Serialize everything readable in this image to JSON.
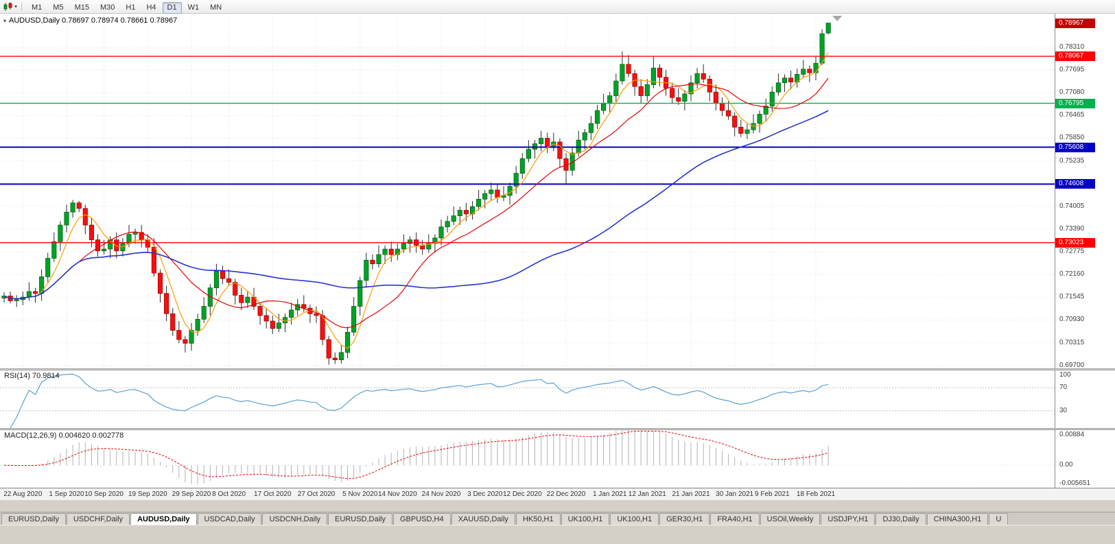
{
  "toolbar": {
    "timeframes": [
      "M1",
      "M5",
      "M15",
      "M30",
      "H1",
      "H4",
      "D1",
      "W1",
      "MN"
    ],
    "active_timeframe": "D1"
  },
  "icons": {
    "dropdown_caret": "▾",
    "chart_menu": "▾"
  },
  "chart": {
    "header_text": "AUDUSD,Daily 0.78697 0.78974 0.78661 0.78967",
    "symbol": "AUDUSD",
    "timeframe": "Daily",
    "open": "0.78697",
    "high": "0.78974",
    "low": "0.78661",
    "close": "0.78967"
  },
  "price_axis": {
    "ticks": [
      "0.78310",
      "0.77695",
      "0.77080",
      "0.76465",
      "0.75850",
      "0.75235",
      "0.74620",
      "0.74005",
      "0.73390",
      "0.72775",
      "0.72160",
      "0.71545",
      "0.70930",
      "0.70315",
      "0.69700"
    ],
    "current": {
      "label": "0.78967",
      "value": 0.78967,
      "bg": "#c40000"
    },
    "lines": [
      {
        "label": "0.78067",
        "value": 0.78067,
        "color": "#ff0000",
        "width": 1.4
      },
      {
        "label": "0.76795",
        "value": 0.76795,
        "color": "#00b14f",
        "width": 1.4
      },
      {
        "label": "0.75608",
        "value": 0.75608,
        "color": "#0000c8",
        "width": 2
      },
      {
        "label": "0.74608",
        "value": 0.74608,
        "color": "#0000c8",
        "width": 2
      },
      {
        "label": "0.73023",
        "value": 0.73023,
        "color": "#ff0000",
        "width": 1.4
      }
    ]
  },
  "chart_data": {
    "type": "candlestick",
    "title": "AUDUSD Daily",
    "y_range": [
      0.6962,
      0.7922
    ],
    "x_labels": [
      "22 Aug 2020",
      "1 Sep 2020",
      "10 Sep 2020",
      "19 Sep 2020",
      "29 Sep 2020",
      "8 Oct 2020",
      "17 Oct 2020",
      "27 Oct 2020",
      "5 Nov 2020",
      "14 Nov 2020",
      "24 Nov 2020",
      "3 Dec 2020",
      "12 Dec 2020",
      "22 Dec 2020",
      "1 Jan 2021",
      "12 Jan 2021",
      "21 Jan 2021",
      "30 Jan 2021",
      "9 Feb 2021",
      "18 Feb 2021"
    ],
    "x_label_indices": [
      3,
      10,
      16,
      23,
      30,
      36,
      43,
      50,
      57,
      63,
      70,
      77,
      83,
      90,
      97,
      103,
      110,
      117,
      123,
      130
    ],
    "candles": [
      [
        0.7152,
        0.7168,
        0.714,
        0.7158
      ],
      [
        0.7158,
        0.717,
        0.7138,
        0.7145
      ],
      [
        0.7145,
        0.716,
        0.7128,
        0.7148
      ],
      [
        0.7148,
        0.717,
        0.7133,
        0.7155
      ],
      [
        0.7155,
        0.7195,
        0.7145,
        0.717
      ],
      [
        0.717,
        0.718,
        0.714,
        0.7165
      ],
      [
        0.7165,
        0.723,
        0.7145,
        0.721
      ],
      [
        0.721,
        0.7275,
        0.7195,
        0.726
      ],
      [
        0.726,
        0.733,
        0.725,
        0.7305
      ],
      [
        0.7305,
        0.736,
        0.728,
        0.735
      ],
      [
        0.735,
        0.7405,
        0.733,
        0.7385
      ],
      [
        0.7385,
        0.7418,
        0.737,
        0.741
      ],
      [
        0.741,
        0.7415,
        0.7385,
        0.7395
      ],
      [
        0.7395,
        0.7405,
        0.7325,
        0.735
      ],
      [
        0.735,
        0.737,
        0.729,
        0.731
      ],
      [
        0.731,
        0.7325,
        0.7265,
        0.728
      ],
      [
        0.728,
        0.731,
        0.727,
        0.7285
      ],
      [
        0.7285,
        0.732,
        0.726,
        0.731
      ],
      [
        0.731,
        0.733,
        0.726,
        0.728
      ],
      [
        0.728,
        0.7315,
        0.7265,
        0.73
      ],
      [
        0.73,
        0.735,
        0.729,
        0.7325
      ],
      [
        0.7325,
        0.734,
        0.73,
        0.733
      ],
      [
        0.733,
        0.735,
        0.729,
        0.731
      ],
      [
        0.731,
        0.7325,
        0.7275,
        0.729
      ],
      [
        0.729,
        0.7315,
        0.721,
        0.722
      ],
      [
        0.722,
        0.723,
        0.714,
        0.7165
      ],
      [
        0.7165,
        0.7185,
        0.709,
        0.711
      ],
      [
        0.711,
        0.7125,
        0.705,
        0.7065
      ],
      [
        0.7065,
        0.709,
        0.703,
        0.704
      ],
      [
        0.704,
        0.705,
        0.7005,
        0.703
      ],
      [
        0.703,
        0.7085,
        0.701,
        0.7065
      ],
      [
        0.7065,
        0.711,
        0.705,
        0.7095
      ],
      [
        0.7095,
        0.7155,
        0.7085,
        0.713
      ],
      [
        0.713,
        0.719,
        0.7105,
        0.718
      ],
      [
        0.718,
        0.7245,
        0.716,
        0.7225
      ],
      [
        0.7225,
        0.724,
        0.719,
        0.7205
      ],
      [
        0.7205,
        0.723,
        0.7185,
        0.7195
      ],
      [
        0.7195,
        0.7205,
        0.7135,
        0.716
      ],
      [
        0.716,
        0.718,
        0.712,
        0.714
      ],
      [
        0.714,
        0.717,
        0.7125,
        0.7155
      ],
      [
        0.7155,
        0.718,
        0.712,
        0.713
      ],
      [
        0.713,
        0.714,
        0.708,
        0.7105
      ],
      [
        0.7105,
        0.7125,
        0.707,
        0.709
      ],
      [
        0.709,
        0.7105,
        0.7055,
        0.707
      ],
      [
        0.707,
        0.711,
        0.706,
        0.7085
      ],
      [
        0.7085,
        0.711,
        0.706,
        0.71
      ],
      [
        0.71,
        0.714,
        0.708,
        0.712
      ],
      [
        0.712,
        0.715,
        0.7105,
        0.7135
      ],
      [
        0.7135,
        0.716,
        0.7115,
        0.7125
      ],
      [
        0.7125,
        0.7135,
        0.7085,
        0.711
      ],
      [
        0.711,
        0.713,
        0.7085,
        0.7105
      ],
      [
        0.7105,
        0.712,
        0.7025,
        0.704
      ],
      [
        0.704,
        0.705,
        0.6972,
        0.699
      ],
      [
        0.699,
        0.7005,
        0.6974,
        0.6985
      ],
      [
        0.6985,
        0.7025,
        0.6975,
        0.7005
      ],
      [
        0.7005,
        0.7075,
        0.699,
        0.706
      ],
      [
        0.706,
        0.7155,
        0.705,
        0.713
      ],
      [
        0.713,
        0.721,
        0.7105,
        0.72
      ],
      [
        0.72,
        0.7275,
        0.718,
        0.7255
      ],
      [
        0.7255,
        0.727,
        0.723,
        0.7245
      ],
      [
        0.7245,
        0.7295,
        0.7235,
        0.727
      ],
      [
        0.727,
        0.7295,
        0.7245,
        0.7285
      ],
      [
        0.7285,
        0.7305,
        0.725,
        0.727
      ],
      [
        0.727,
        0.73,
        0.7255,
        0.7285
      ],
      [
        0.7285,
        0.7325,
        0.7275,
        0.73
      ],
      [
        0.73,
        0.732,
        0.7275,
        0.731
      ],
      [
        0.731,
        0.733,
        0.7275,
        0.7295
      ],
      [
        0.7295,
        0.731,
        0.727,
        0.7285
      ],
      [
        0.7285,
        0.7325,
        0.7275,
        0.73
      ],
      [
        0.73,
        0.7325,
        0.7275,
        0.7315
      ],
      [
        0.7315,
        0.7365,
        0.7295,
        0.7345
      ],
      [
        0.7345,
        0.7375,
        0.733,
        0.736
      ],
      [
        0.736,
        0.74,
        0.735,
        0.7375
      ],
      [
        0.7375,
        0.74,
        0.735,
        0.739
      ],
      [
        0.739,
        0.741,
        0.736,
        0.738
      ],
      [
        0.738,
        0.7415,
        0.7365,
        0.74
      ],
      [
        0.74,
        0.7445,
        0.739,
        0.742
      ],
      [
        0.742,
        0.7445,
        0.7395,
        0.7435
      ],
      [
        0.7435,
        0.7465,
        0.7415,
        0.7445
      ],
      [
        0.7445,
        0.746,
        0.741,
        0.7425
      ],
      [
        0.7425,
        0.7455,
        0.7415,
        0.743
      ],
      [
        0.743,
        0.7465,
        0.7405,
        0.7455
      ],
      [
        0.7455,
        0.751,
        0.7435,
        0.749
      ],
      [
        0.749,
        0.7545,
        0.7475,
        0.753
      ],
      [
        0.753,
        0.758,
        0.752,
        0.7555
      ],
      [
        0.7555,
        0.758,
        0.753,
        0.757
      ],
      [
        0.757,
        0.7605,
        0.755,
        0.7585
      ],
      [
        0.7585,
        0.76,
        0.7545,
        0.756
      ],
      [
        0.756,
        0.76,
        0.755,
        0.7575
      ],
      [
        0.7575,
        0.7585,
        0.7505,
        0.753
      ],
      [
        0.753,
        0.7545,
        0.7459,
        0.7498
      ],
      [
        0.7498,
        0.756,
        0.7483,
        0.7545
      ],
      [
        0.7545,
        0.7605,
        0.7535,
        0.758
      ],
      [
        0.758,
        0.761,
        0.7555,
        0.76
      ],
      [
        0.76,
        0.7645,
        0.758,
        0.7625
      ],
      [
        0.7625,
        0.7675,
        0.761,
        0.766
      ],
      [
        0.766,
        0.7705,
        0.765,
        0.768
      ],
      [
        0.768,
        0.771,
        0.7655,
        0.77
      ],
      [
        0.77,
        0.776,
        0.768,
        0.774
      ],
      [
        0.774,
        0.782,
        0.773,
        0.7785
      ],
      [
        0.7785,
        0.781,
        0.775,
        0.776
      ],
      [
        0.776,
        0.777,
        0.77,
        0.7725
      ],
      [
        0.7725,
        0.7745,
        0.768,
        0.77
      ],
      [
        0.77,
        0.7745,
        0.7685,
        0.773
      ],
      [
        0.773,
        0.7806,
        0.772,
        0.7775
      ],
      [
        0.7775,
        0.7785,
        0.7725,
        0.775
      ],
      [
        0.775,
        0.777,
        0.77,
        0.772
      ],
      [
        0.772,
        0.7735,
        0.768,
        0.7695
      ],
      [
        0.7695,
        0.772,
        0.7675,
        0.7685
      ],
      [
        0.7685,
        0.7715,
        0.766,
        0.7705
      ],
      [
        0.7705,
        0.7755,
        0.7685,
        0.7735
      ],
      [
        0.7735,
        0.7775,
        0.772,
        0.776
      ],
      [
        0.776,
        0.7785,
        0.7735,
        0.7745
      ],
      [
        0.7745,
        0.7755,
        0.7685,
        0.771
      ],
      [
        0.771,
        0.773,
        0.766,
        0.768
      ],
      [
        0.768,
        0.7695,
        0.7645,
        0.766
      ],
      [
        0.766,
        0.7685,
        0.7635,
        0.7645
      ],
      [
        0.7645,
        0.7655,
        0.759,
        0.7615
      ],
      [
        0.7615,
        0.7635,
        0.7588,
        0.7598
      ],
      [
        0.7598,
        0.7623,
        0.7583,
        0.7608
      ],
      [
        0.7608,
        0.765,
        0.7598,
        0.7625
      ],
      [
        0.7625,
        0.766,
        0.76,
        0.765
      ],
      [
        0.765,
        0.7692,
        0.763,
        0.7672
      ],
      [
        0.7672,
        0.7725,
        0.7657,
        0.771
      ],
      [
        0.771,
        0.776,
        0.77,
        0.7735
      ],
      [
        0.7735,
        0.7758,
        0.771,
        0.7748
      ],
      [
        0.7748,
        0.7768,
        0.7717,
        0.7737
      ],
      [
        0.7737,
        0.7773,
        0.7722,
        0.7758
      ],
      [
        0.7758,
        0.7797,
        0.7748,
        0.7772
      ],
      [
        0.7772,
        0.7782,
        0.7737,
        0.7762
      ],
      [
        0.7762,
        0.7808,
        0.7742,
        0.7788
      ],
      [
        0.7788,
        0.788,
        0.7783,
        0.7868
      ],
      [
        0.78697,
        0.78974,
        0.78661,
        0.78967
      ]
    ],
    "moving_averages": [
      {
        "name": "ma-fast",
        "period": 5,
        "color": "#ff9c00",
        "width": 1.2
      },
      {
        "name": "ma-medium",
        "period": 13,
        "color": "#e30202",
        "width": 1.2
      },
      {
        "name": "ma-slow",
        "period": 55,
        "color": "#2433cf",
        "width": 1.6
      }
    ]
  },
  "rsi": {
    "header": "RSI(14) 70.9814",
    "period": 14,
    "value": 70.9814,
    "axis_labels": [
      {
        "text": "100",
        "level": 100
      },
      {
        "text": "70",
        "level": 70
      },
      {
        "text": "30",
        "level": 30
      }
    ],
    "levels": [
      70,
      30
    ],
    "color": "#58a0d8"
  },
  "macd": {
    "header": "MACD(12,26,9) 0.004620 0.002778",
    "fast": 12,
    "slow": 26,
    "signal": 9,
    "values": [
      0.00462,
      0.002778
    ],
    "axis_labels": [
      {
        "text": "0.00884",
        "level": 0.00884
      },
      {
        "text": "0.00",
        "level": 0
      },
      {
        "text": "-0.005651",
        "level": -0.005651
      }
    ],
    "scale_max": 0.00884,
    "scale_min": -0.005651,
    "hist_color": "#b2b2b2",
    "signal_color": "#e30202"
  },
  "tabs": {
    "items": [
      "EURUSD,Daily",
      "USDCHF,Daily",
      "AUDUSD,Daily",
      "USDCAD,Daily",
      "USDCNH,Daily",
      "EURUSD,Daily",
      "GBPUSD,H4",
      "XAUUSD,Daily",
      "HK50,H1",
      "UK100,H1",
      "UK100,H1",
      "GER30,H1",
      "FRA40,H1",
      "USOil,Weekly",
      "USDJPY,H1",
      "DJ30,Daily",
      "CHINA300,H1",
      "U"
    ],
    "active_index": 2
  },
  "colors": {
    "bull": "#00a226",
    "bear": "#fd0d0d",
    "bull_border": "#005c14",
    "bear_border": "#8e0000",
    "wick": "#2a2a2a",
    "grid": "#e4e4e4",
    "shift_marker": "#a8a8a8"
  }
}
